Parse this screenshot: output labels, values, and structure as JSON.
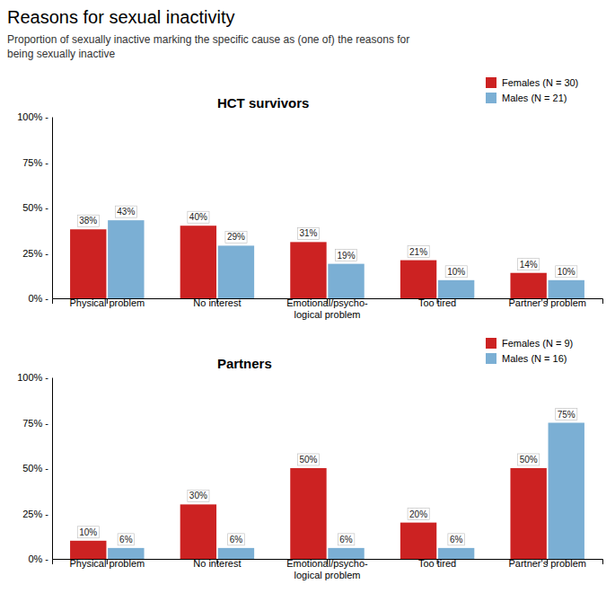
{
  "title": "Reasons for sexual inactivity",
  "subtitle": "Proportion of sexually inactive marking the specific cause as (one of) the reasons for\nbeing sexually inactive",
  "chart_data": [
    {
      "type": "bar",
      "title": "HCT survivors",
      "categories": [
        "Physical problem",
        "No interest",
        "Emotional/psycho-\nlogical problem",
        "Too tired",
        "Partner's problem"
      ],
      "series": [
        {
          "name": "Females (N = 30)",
          "color": "#CC2222",
          "values": [
            38,
            40,
            31,
            21,
            14
          ],
          "value_labels": [
            "38%",
            "40%",
            "31%",
            "21%",
            "14%"
          ]
        },
        {
          "name": "Males (N = 21)",
          "color": "#7BAFD4",
          "values": [
            43,
            29,
            19,
            10,
            10
          ],
          "value_labels": [
            "43%",
            "29%",
            "19%",
            "10%",
            "10%"
          ]
        }
      ],
      "ylim": [
        0,
        100
      ],
      "yticks": [
        {
          "value": 0,
          "label": "0% -"
        },
        {
          "value": 25,
          "label": "25% -"
        },
        {
          "value": 50,
          "label": "50% -"
        },
        {
          "value": 75,
          "label": "75% -"
        },
        {
          "value": 100,
          "label": "100% -"
        }
      ],
      "grid": false,
      "legend": "upper right",
      "data_labels": true
    },
    {
      "type": "bar",
      "title": "Partners",
      "categories": [
        "Physical problem",
        "No interest",
        "Emotional/psycho-\nlogical problem",
        "Too tired",
        "Partner's problem"
      ],
      "series": [
        {
          "name": "Females (N = 9)",
          "color": "#CC2222",
          "values": [
            10,
            30,
            50,
            20,
            50
          ],
          "value_labels": [
            "10%",
            "30%",
            "50%",
            "20%",
            "50%"
          ]
        },
        {
          "name": "Males (N = 16)",
          "color": "#7BAFD4",
          "values": [
            6,
            6,
            6,
            6,
            75
          ],
          "value_labels": [
            "6%",
            "6%",
            "6%",
            "6%",
            "75%"
          ]
        }
      ],
      "ylim": [
        0,
        100
      ],
      "yticks": [
        {
          "value": 0,
          "label": "0% -"
        },
        {
          "value": 25,
          "label": "25% -"
        },
        {
          "value": 50,
          "label": "50% -"
        },
        {
          "value": 75,
          "label": "75% -"
        },
        {
          "value": 100,
          "label": "100% -"
        }
      ],
      "grid": false,
      "legend": "upper right",
      "data_labels": true
    }
  ]
}
